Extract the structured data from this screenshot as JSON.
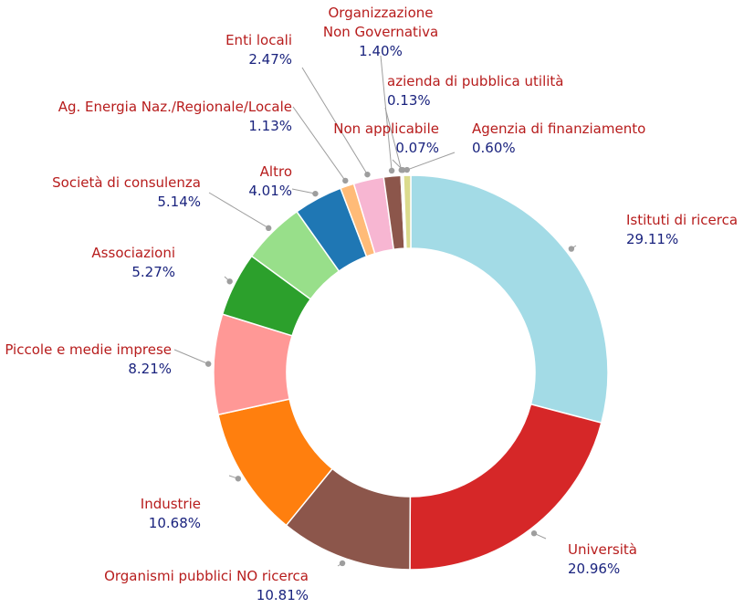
{
  "chart_data": {
    "type": "pie",
    "style": "donut",
    "slices": [
      {
        "label": "Istituti di ricerca",
        "value": 29.11,
        "pct_text": "29.11%",
        "color": "#a3dbe6"
      },
      {
        "label": "Università",
        "value": 20.96,
        "pct_text": "20.96%",
        "color": "#d62728"
      },
      {
        "label": "Organismi pubblici NO ricerca",
        "value": 10.81,
        "pct_text": "10.81%",
        "color": "#8c564b"
      },
      {
        "label": "Industrie",
        "value": 10.68,
        "pct_text": "10.68%",
        "color": "#ff7f0e"
      },
      {
        "label": "Piccole e medie imprese",
        "value": 8.21,
        "pct_text": "8.21%",
        "color": "#ff9896"
      },
      {
        "label": "Associazioni",
        "value": 5.27,
        "pct_text": "5.27%",
        "color": "#2ca02c"
      },
      {
        "label": "Società di consulenza",
        "value": 5.14,
        "pct_text": "5.14%",
        "color": "#98df8a"
      },
      {
        "label": "Altro",
        "value": 4.01,
        "pct_text": "4.01%",
        "color": "#1f77b4"
      },
      {
        "label": "Ag. Energia Naz./Regionale/Locale",
        "value": 1.13,
        "pct_text": "1.13%",
        "color": "#ffbb78"
      },
      {
        "label": "Enti locali",
        "value": 2.47,
        "pct_text": "2.47%",
        "color": "#f7b6d2"
      },
      {
        "label": "Organizzazione\nNon Governativa",
        "value": 1.4,
        "pct_text": "1.40%",
        "color": "#8c564b"
      },
      {
        "label": "azienda di pubblica utilità",
        "value": 0.13,
        "pct_text": "0.13%",
        "color": "#c7c7c7"
      },
      {
        "label": "Non applicabile",
        "value": 0.07,
        "pct_text": "0.07%",
        "color": "#c49c94"
      },
      {
        "label": "Agenzia di finanziamento",
        "value": 0.6,
        "pct_text": "0.60%",
        "color": "#dbdb8d"
      }
    ]
  }
}
